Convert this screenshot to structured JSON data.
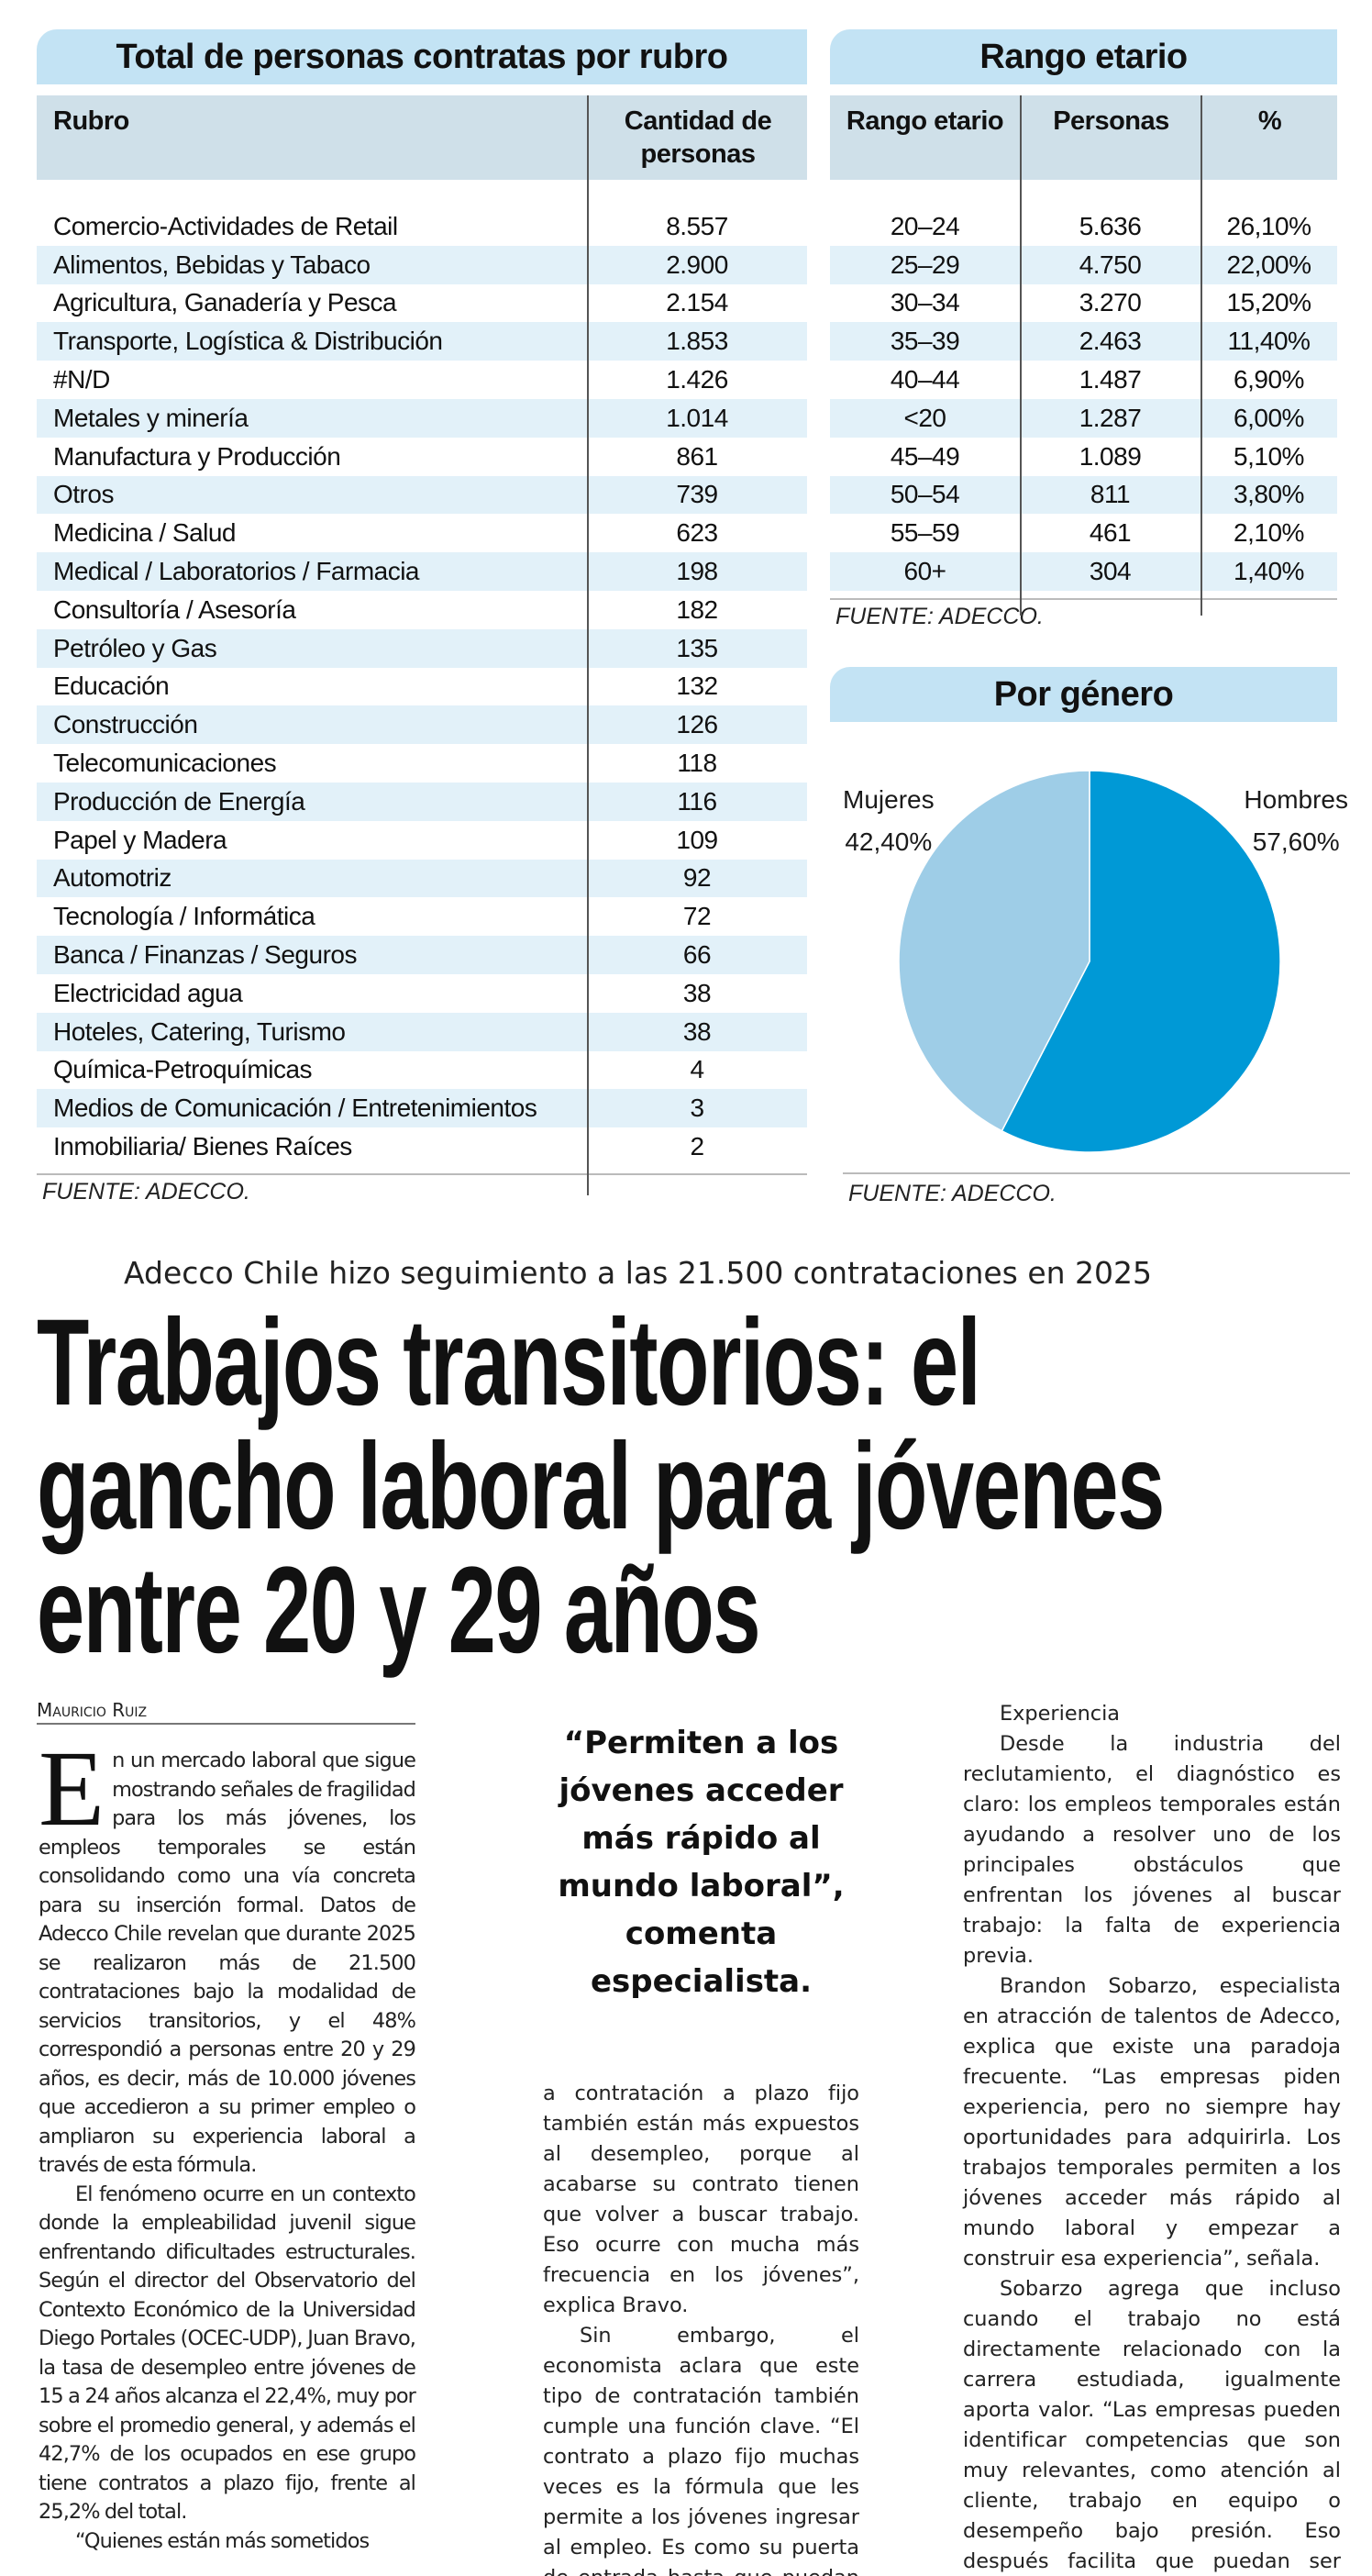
{
  "rubro_table": {
    "title": "Total de personas contratas por rubro",
    "headers": [
      "Rubro",
      "Cantidad de personas"
    ],
    "rows": [
      [
        "Comercio-Actividades de Retail",
        "8.557"
      ],
      [
        "Alimentos, Bebidas y Tabaco",
        "2.900"
      ],
      [
        "Agricultura, Ganadería y Pesca",
        "2.154"
      ],
      [
        "Transporte, Logística & Distribución",
        "1.853"
      ],
      [
        "#N/D",
        "1.426"
      ],
      [
        "Metales y minería",
        "1.014"
      ],
      [
        "Manufactura y Producción",
        "861"
      ],
      [
        "Otros",
        "739"
      ],
      [
        "Medicina / Salud",
        "623"
      ],
      [
        "Medical / Laboratorios / Farmacia",
        "198"
      ],
      [
        "Consultoría / Asesoría",
        "182"
      ],
      [
        "Petróleo y Gas",
        "135"
      ],
      [
        "Educación",
        "132"
      ],
      [
        "Construcción",
        "126"
      ],
      [
        "Telecomunicaciones",
        "118"
      ],
      [
        "Producción de Energía",
        "116"
      ],
      [
        "Papel y Madera",
        "109"
      ],
      [
        "Automotriz",
        "92"
      ],
      [
        "Tecnología / Informática",
        "72"
      ],
      [
        "Banca / Finanzas / Seguros",
        "66"
      ],
      [
        "Electricidad agua",
        "38"
      ],
      [
        "Hoteles, Catering, Turismo",
        "38"
      ],
      [
        "Química-Petroquímicas",
        "4"
      ],
      [
        "Medios de Comunicación / Entretenimientos",
        "3"
      ],
      [
        "Inmobiliaria/ Bienes Raíces",
        "2"
      ]
    ],
    "source": "FUENTE: ADECCO."
  },
  "age_table": {
    "title": "Rango etario",
    "headers": [
      "Rango etario",
      "Personas",
      "%"
    ],
    "rows": [
      [
        "20–24",
        "5.636",
        "26,10%"
      ],
      [
        "25–29",
        "4.750",
        "22,00%"
      ],
      [
        "30–34",
        "3.270",
        "15,20%"
      ],
      [
        "35–39",
        "2.463",
        "11,40%"
      ],
      [
        "40–44",
        "1.487",
        "6,90%"
      ],
      [
        "<20",
        "1.287",
        "6,00%"
      ],
      [
        "45–49",
        "1.089",
        "5,10%"
      ],
      [
        "50–54",
        "811",
        "3,80%"
      ],
      [
        "55–59",
        "461",
        "2,10%"
      ],
      [
        "60+",
        "304",
        "1,40%"
      ]
    ],
    "source": "FUENTE: ADECCO."
  },
  "chart_data": {
    "type": "pie",
    "title": "Por género",
    "slices": [
      {
        "label": "Hombres",
        "value": 57.6,
        "display": "57,60%",
        "color": "#0099d6"
      },
      {
        "label": "Mujeres",
        "value": 42.4,
        "display": "42,40%",
        "color": "#9ecde7"
      }
    ],
    "source": "FUENTE: ADECCO."
  },
  "article": {
    "kicker": "Adecco Chile hizo seguimiento a las 21.500 contrataciones en 2025",
    "headline": [
      "Trabajos transitorios: el",
      "gancho laboral para jóvenes",
      "entre 20 y 29 años"
    ],
    "byline": "Mauricio Ruiz",
    "dropcap": "E",
    "col1": [
      "n un mercado laboral que sigue mostrando señales de fragilidad para los más jóvenes, los empleos temporales se están consolidando como una vía concreta para su inserción formal. Datos de Adecco Chile revelan que durante 2025 se realizaron más de 21.500 contrataciones bajo la modalidad de servicios transitorios, y el 48% correspondió a personas entre 20 y 29 años, es decir, más de 10.000 jóvenes que accedieron a su primer empleo o ampliaron su experiencia laboral a través de esta fórmula.",
      "El fenómeno ocurre en un contexto donde la empleabilidad juvenil sigue enfrentando dificultades estructurales. Según el director del Observatorio del Contexto Económico de la Universidad Diego Portales (OCEC-UDP), Juan Bravo, la tasa de desempleo entre jóvenes de 15 a 24 años alcanza el 22,4%, muy por sobre el promedio general, y además el 42,7% de los ocupados en ese grupo tiene contratos a plazo fijo, frente al 25,2% del total.",
      "“Quienes están más sometidos"
    ],
    "pull_quote": "“Permiten a los jóvenes acceder más rápido al mundo laboral”, comenta especialista.",
    "col2": [
      "a contratación a plazo fijo también están más expuestos al desempleo, porque al acabarse su contrato tienen que volver a buscar trabajo. Eso ocurre con mucha más frecuencia en los jóvenes”, explica Bravo.",
      "Sin embargo, el economista aclara que este tipo de contratación también cumple una función clave. “El contrato a plazo fijo muchas veces es la fórmula que les permite a los jóvenes ingresar al empleo. Es como su puerta de entrada hasta que puedan demostrar lo que saben hacer y luego acceder a un contrato indefinido”, afirma."
    ],
    "subhead": "Experiencia",
    "col3": [
      "Desde la industria del reclutamiento, el diagnóstico es claro: los empleos temporales están ayudando a resolver uno de los principales obstáculos que enfrentan los jóvenes al buscar trabajo: la falta de experiencia previa.",
      "Brandon Sobarzo, especialista en atracción de talentos de Adecco, explica que existe una paradoja frecuente. “Las empresas piden experiencia, pero no siempre hay oportunidades para adquirirla. Los trabajos temporales permiten a los jóvenes acceder más rápido al mundo laboral y empezar a construir esa experiencia”, señala.",
      "Sobarzo agrega que incluso cuando el trabajo no está directamente relacionado con la carrera estudiada, igualmente aporta valor. “Las empresas pueden identificar competencias que son muy relevantes, como atención al cliente, trabajo en equipo o desempeño bajo presión. Eso después facilita que puedan ser elegidos para cargos más estables o administrativos”, explica."
    ]
  }
}
